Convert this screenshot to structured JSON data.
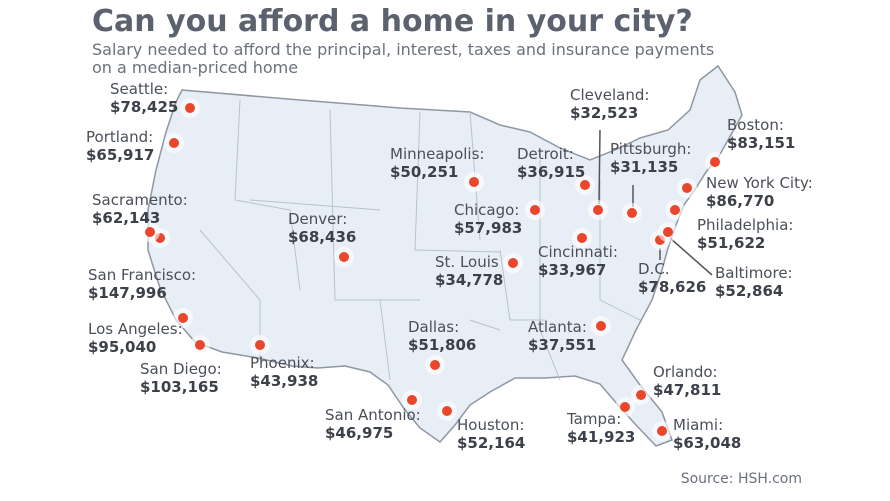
{
  "title": "Can you afford a home in your city?",
  "subtitle": [
    "Salary needed to afford the principal, interest, taxes and insurance payments",
    "on a median-priced home"
  ],
  "cities": [
    {
      "name": "Seattle:",
      "salary": "$78,425"
    },
    {
      "name": "Portland:",
      "salary": "$65,917"
    },
    {
      "name": "Sacramento:",
      "salary": "$62,143"
    },
    {
      "name": "San Francisco:",
      "salary": "$147,996"
    },
    {
      "name": "Los Angeles:",
      "salary": "$95,040"
    },
    {
      "name": "San Diego:",
      "salary": "$103,165"
    },
    {
      "name": "Phoenix:",
      "salary": "$43,938"
    },
    {
      "name": "Denver:",
      "salary": "$68,436"
    },
    {
      "name": "Dallas:",
      "salary": "$51,806"
    },
    {
      "name": "San Antonio:",
      "salary": "$46,975"
    },
    {
      "name": "Houston:",
      "salary": "$52,164"
    },
    {
      "name": "Minneapolis:",
      "salary": "$50,251"
    },
    {
      "name": "St. Louis",
      "salary": "$34,778"
    },
    {
      "name": "Chicago:",
      "salary": "$57,983"
    },
    {
      "name": "Detroit:",
      "salary": "$36,915"
    },
    {
      "name": "Cleveland:",
      "salary": "$32,523"
    },
    {
      "name": "Pittsburgh:",
      "salary": "$31,135"
    },
    {
      "name": "Cincinnati:",
      "salary": "$33,967"
    },
    {
      "name": "Atlanta:",
      "salary": "$37,551"
    },
    {
      "name": "D.C.",
      "salary": "$78,626"
    },
    {
      "name": "Baltimore:",
      "salary": "$52,864"
    },
    {
      "name": "Philadelphia:",
      "salary": "$51,622"
    },
    {
      "name": "New York City:",
      "salary": "$86,770"
    },
    {
      "name": "Boston:",
      "salary": "$83,151"
    },
    {
      "name": "Orlando:",
      "salary": "$47,811"
    },
    {
      "name": "Tampa:",
      "salary": "$41,923"
    },
    {
      "name": "Miami:",
      "salary": "$63,048"
    }
  ],
  "source": "Source: HSH.com"
}
